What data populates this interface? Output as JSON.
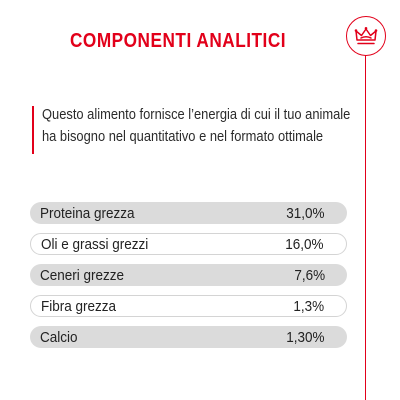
{
  "header": {
    "title": "COMPONENTI ANALITICI",
    "logo_icon": "royal-canin-crown-icon",
    "accent_color": "#e2001a"
  },
  "description": {
    "lines": [
      "Questo alimento fornisce l’energia di cui il tuo animale",
      "ha bisogno nel quantitativo e nel formato ottimale"
    ]
  },
  "nutrients": [
    {
      "label": "Proteina grezza",
      "value": "31,0%"
    },
    {
      "label": "Oli e grassi grezzi",
      "value": "16,0%"
    },
    {
      "label": "Ceneri grezze",
      "value": "7,6%"
    },
    {
      "label": "Fibra grezza",
      "value": "1,3%"
    },
    {
      "label": "Calcio",
      "value": "1,30%"
    }
  ]
}
